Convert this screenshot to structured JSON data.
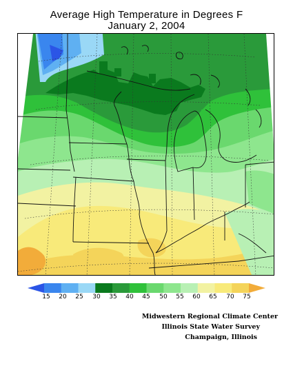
{
  "title": {
    "line1": "Average High Temperature in Degrees F",
    "line2": "January 2, 2004"
  },
  "legend": {
    "ticks": [
      "15",
      "20",
      "25",
      "30",
      "35",
      "40",
      "45",
      "50",
      "55",
      "60",
      "65",
      "70",
      "75"
    ],
    "colors": {
      "lt15": "#2b55e6",
      "15_20": "#3a86ee",
      "20_25": "#5fb0f2",
      "25_30": "#9ad8f6",
      "30_35": "#0a7a1e",
      "35_40": "#2a9a3a",
      "40_45": "#2fc13a",
      "45_50": "#6ad86e",
      "50_55": "#8ee68e",
      "55_60": "#b8f0b4",
      "60_65": "#f2f2a2",
      "65_70": "#f8ea7a",
      "70_75": "#f4d45a",
      "gt75": "#f2ac3a"
    }
  },
  "credits": {
    "line1": "Midwestern Regional Climate Center",
    "line2": "Illinois State Water Survey",
    "line3": "Champaign, Illinois"
  },
  "map": {
    "region": "Midwest United States",
    "variable": "average high temperature",
    "units": "degrees F"
  }
}
